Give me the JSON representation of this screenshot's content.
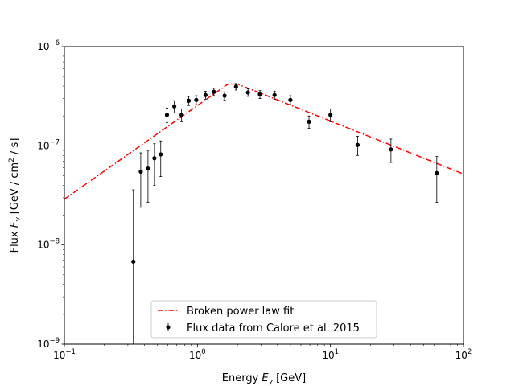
{
  "chart_data": {
    "type": "scatter",
    "title": "",
    "xlabel": {
      "text": "Energy ",
      "var": "E",
      "sub": "γ",
      "unit": " [GeV]"
    },
    "ylabel": {
      "text": "Flux ",
      "var": "F",
      "sub": "γ",
      "unit_pre": " [GeV / cm",
      "sup": "2",
      "unit_post": " / s]"
    },
    "xscale": "log",
    "yscale": "log",
    "xlim": [
      0.1,
      100
    ],
    "ylim": [
      1e-09,
      1e-06
    ],
    "x_ticks": [
      {
        "value": 0.1,
        "base": "10",
        "exp": "−1"
      },
      {
        "value": 1,
        "base": "10",
        "exp": "0"
      },
      {
        "value": 10,
        "base": "10",
        "exp": "1"
      },
      {
        "value": 100,
        "base": "10",
        "exp": "2"
      }
    ],
    "y_ticks": [
      {
        "value": 1e-09,
        "base": "10",
        "exp": "−9"
      },
      {
        "value": 1e-08,
        "base": "10",
        "exp": "−8"
      },
      {
        "value": 1e-07,
        "base": "10",
        "exp": "−7"
      },
      {
        "value": 1e-06,
        "base": "10",
        "exp": "−6"
      }
    ],
    "legend_position": "bottom-center",
    "series": [
      {
        "name": "Broken power law fit",
        "kind": "line",
        "style": "dash-dot",
        "color": "#ff0000",
        "x": [
          0.1,
          1.7,
          2.0,
          100
        ],
        "y": [
          2.9e-08,
          4.2e-07,
          4.2e-07,
          5.2e-08
        ]
      },
      {
        "name": "Flux data from Calore et al. 2015",
        "kind": "errorbar",
        "color": "#000000",
        "points": [
          {
            "x": 0.33,
            "y": 6.8e-09,
            "lo": 1e-10,
            "hi": 3.6e-08
          },
          {
            "x": 0.375,
            "y": 5.5e-08,
            "lo": 2.4e-08,
            "hi": 8.5e-08
          },
          {
            "x": 0.425,
            "y": 5.9e-08,
            "lo": 2.7e-08,
            "hi": 9e-08
          },
          {
            "x": 0.475,
            "y": 7.5e-08,
            "lo": 4e-08,
            "hi": 1.05e-07
          },
          {
            "x": 0.53,
            "y": 8.2e-08,
            "lo": 4.9e-08,
            "hi": 1.12e-07
          },
          {
            "x": 0.59,
            "y": 2.05e-07,
            "lo": 1.72e-07,
            "hi": 2.4e-07
          },
          {
            "x": 0.67,
            "y": 2.5e-07,
            "lo": 2.15e-07,
            "hi": 2.85e-07
          },
          {
            "x": 0.76,
            "y": 2.05e-07,
            "lo": 1.75e-07,
            "hi": 2.35e-07
          },
          {
            "x": 0.86,
            "y": 2.85e-07,
            "lo": 2.55e-07,
            "hi": 3.15e-07
          },
          {
            "x": 0.98,
            "y": 2.9e-07,
            "lo": 2.6e-07,
            "hi": 3.2e-07
          },
          {
            "x": 1.15,
            "y": 3.25e-07,
            "lo": 2.95e-07,
            "hi": 3.55e-07
          },
          {
            "x": 1.33,
            "y": 3.5e-07,
            "lo": 3.2e-07,
            "hi": 3.8e-07
          },
          {
            "x": 1.6,
            "y": 3.2e-07,
            "lo": 2.9e-07,
            "hi": 3.5e-07
          },
          {
            "x": 1.95,
            "y": 3.95e-07,
            "lo": 3.65e-07,
            "hi": 4.25e-07
          },
          {
            "x": 2.4,
            "y": 3.45e-07,
            "lo": 3.15e-07,
            "hi": 3.75e-07
          },
          {
            "x": 2.95,
            "y": 3.3e-07,
            "lo": 3e-07,
            "hi": 3.6e-07
          },
          {
            "x": 3.8,
            "y": 3.25e-07,
            "lo": 2.95e-07,
            "hi": 3.55e-07
          },
          {
            "x": 5.0,
            "y": 2.9e-07,
            "lo": 2.6e-07,
            "hi": 3.2e-07
          },
          {
            "x": 6.9,
            "y": 1.75e-07,
            "lo": 1.5e-07,
            "hi": 2e-07
          },
          {
            "x": 10.0,
            "y": 2.05e-07,
            "lo": 1.75e-07,
            "hi": 2.35e-07
          },
          {
            "x": 16.0,
            "y": 1.02e-07,
            "lo": 8e-08,
            "hi": 1.25e-07
          },
          {
            "x": 28.5,
            "y": 9.2e-08,
            "lo": 6.8e-08,
            "hi": 1.17e-07
          },
          {
            "x": 63.0,
            "y": 5.3e-08,
            "lo": 2.7e-08,
            "hi": 7.8e-08
          }
        ]
      }
    ]
  }
}
